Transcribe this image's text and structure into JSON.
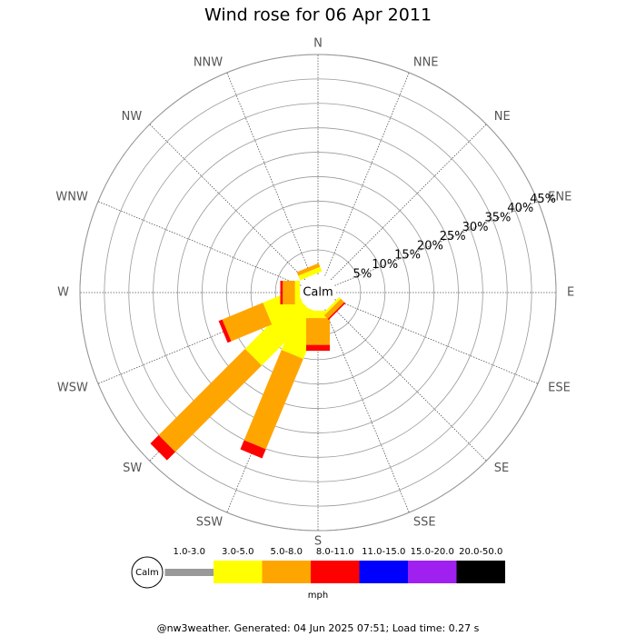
{
  "chart_data": {
    "type": "wind-rose",
    "title": "Wind rose for 06 Apr 2011",
    "directions": [
      "N",
      "NNE",
      "NE",
      "ENE",
      "E",
      "ESE",
      "SE",
      "SSE",
      "S",
      "SSW",
      "SW",
      "WSW",
      "W",
      "WNW",
      "NW",
      "NNW"
    ],
    "calm_label": "Calm",
    "series": [
      {
        "name": "1.0-3.0",
        "color": "#999999",
        "values": [
          0,
          0,
          0,
          0,
          0,
          0,
          0,
          0,
          0,
          0,
          0,
          0,
          0,
          0,
          0,
          0
        ]
      },
      {
        "name": "3.0-5.0",
        "color": "#ffff00",
        "values": [
          0,
          0,
          0,
          0,
          0,
          0,
          0.5,
          0,
          1.5,
          10,
          15,
          7.5,
          1,
          0,
          0,
          1
        ]
      },
      {
        "name": "5.0-8.0",
        "color": "#ffa500",
        "values": [
          0,
          0,
          0,
          0,
          0,
          0,
          1,
          0,
          5.5,
          20,
          25,
          9,
          2.5,
          0,
          0,
          0.8
        ]
      },
      {
        "name": "8.0-11.0",
        "color": "#ff0000",
        "values": [
          0,
          0,
          0,
          0,
          0,
          0,
          0.3,
          0,
          1.2,
          2,
          2.4,
          0.8,
          0.5,
          0,
          0,
          0
        ]
      },
      {
        "name": "11.0-15.0",
        "color": "#0000ff",
        "values": [
          0,
          0,
          0,
          0,
          0,
          0,
          0,
          0,
          0,
          0,
          0,
          0,
          0,
          0,
          0,
          0
        ]
      },
      {
        "name": "15.0-20.0",
        "color": "#a020f0",
        "values": [
          0,
          0,
          0,
          0,
          0,
          0,
          0,
          0,
          0,
          0,
          0,
          0,
          0,
          0,
          0,
          0
        ]
      },
      {
        "name": "20.0-50.0",
        "color": "#000000",
        "values": [
          0,
          0,
          0,
          0,
          0,
          0,
          0,
          0,
          0,
          0,
          0,
          0,
          0,
          0,
          0,
          0
        ]
      }
    ],
    "rlim": [
      0,
      45
    ],
    "rticks": [
      {
        "value": 5,
        "label": "5%"
      },
      {
        "value": 10,
        "label": "10%"
      },
      {
        "value": 15,
        "label": "15%"
      },
      {
        "value": 20,
        "label": "20%"
      },
      {
        "value": 25,
        "label": "25%"
      },
      {
        "value": 30,
        "label": "30%"
      },
      {
        "value": 35,
        "label": "35%"
      },
      {
        "value": 40,
        "label": "40%"
      },
      {
        "value": 45,
        "label": "45%"
      }
    ],
    "legend_unit": "mph",
    "footer": "@nw3weather. Generated: 04 Jun 2025 07:51; Load time: 0.27 s"
  }
}
